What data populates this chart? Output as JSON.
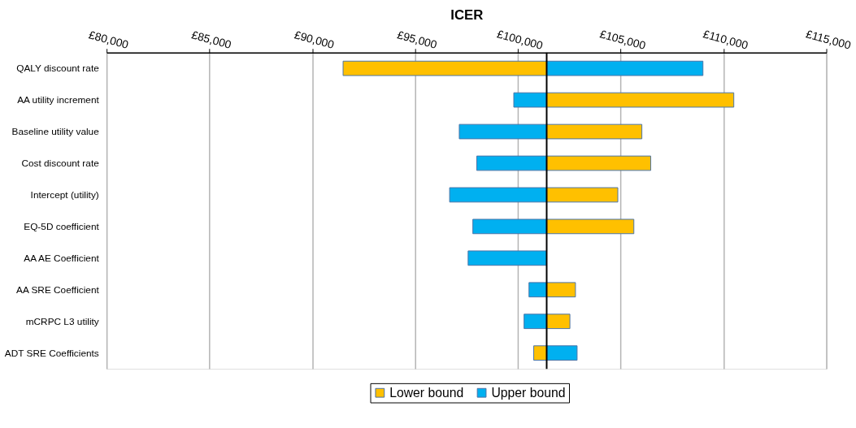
{
  "chart_data": {
    "type": "bar",
    "orientation": "horizontal",
    "xlabel": "ICER",
    "categories": [
      "QALY discount rate",
      "AA utility increment",
      "Baseline utility value",
      "Cost discount rate",
      "Intercept (utility)",
      "EQ-5D coefficient",
      "AA AE Coefficient",
      "AA SRE Coefficient",
      "mCRPC L3 utility",
      "ADT SRE Coefficients"
    ],
    "series": [
      {
        "name": "Lower bound",
        "color": "#ffc000",
        "base": [
          101400,
          101400,
          101400,
          101400,
          101400,
          101400,
          null,
          101400,
          101400,
          101400
        ],
        "values": [
          -9900,
          9100,
          4630,
          5060,
          3460,
          4240,
          null,
          1400,
          1130,
          -630
        ]
      },
      {
        "name": "Upper bound",
        "color": "#00b0f0",
        "base": [
          101400,
          101400,
          101400,
          101400,
          101400,
          101400,
          101400,
          101400,
          101400,
          101400
        ],
        "values": [
          7600,
          -1600,
          -4250,
          -3400,
          -4720,
          -3590,
          -3820,
          -860,
          -1100,
          1480
        ]
      }
    ],
    "xlim": [
      80000,
      115000
    ],
    "xticks": [
      {
        "value": 80000,
        "label": "£80,000"
      },
      {
        "value": 85000,
        "label": "£85,000"
      },
      {
        "value": 90000,
        "label": "£90,000"
      },
      {
        "value": 95000,
        "label": "£95,000"
      },
      {
        "value": 100000,
        "label": "£100,000"
      },
      {
        "value": 105000,
        "label": "£105,000"
      },
      {
        "value": 110000,
        "label": "£110,000"
      },
      {
        "value": 115000,
        "label": "£115,000"
      }
    ],
    "ref_lines": [
      {
        "axis": "x",
        "value": 101400,
        "color": "#000000"
      }
    ],
    "grid": "x",
    "legend": "bottom"
  }
}
